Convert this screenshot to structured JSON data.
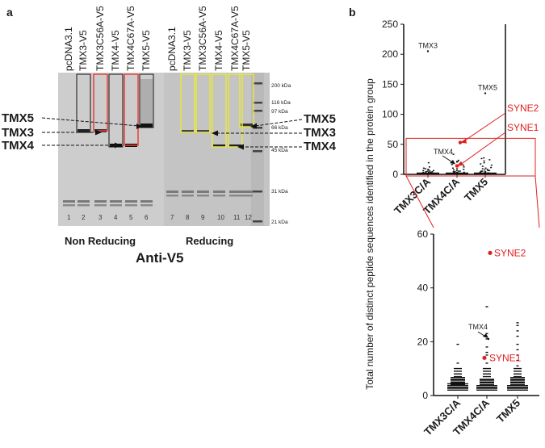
{
  "figure": {
    "panel_a": {
      "letter": "a",
      "lanes": [
        {
          "label": "pcDNA3.1",
          "num": "1"
        },
        {
          "label": "TMX3-V5",
          "num": "2"
        },
        {
          "label": "TMX3C56A-V5",
          "num": "3"
        },
        {
          "label": "TMX4-V5",
          "num": "4"
        },
        {
          "label": "TMX4C67A-V5",
          "num": "5"
        },
        {
          "label": "TMX5-V5",
          "num": "6"
        },
        {
          "label": "pcDNA3.1",
          "num": "7"
        },
        {
          "label": "TMX3-V5",
          "num": "8"
        },
        {
          "label": "TMX3C56A-V5",
          "num": "9"
        },
        {
          "label": "TMX4-V5",
          "num": "10"
        },
        {
          "label": "TMX4C67A-V5",
          "num": "11"
        },
        {
          "label": "TMX5-V5",
          "num": "12"
        }
      ],
      "left_bands": [
        "TMX5",
        "TMX3",
        "TMX4"
      ],
      "right_bands": [
        "TMX5",
        "TMX3",
        "TMX4"
      ],
      "markers": [
        "200 kDa",
        "116 kDa",
        "97 kDa",
        "66 kDa",
        "45 kDa",
        "31 kDa",
        "21 kDa"
      ],
      "condition_left": "Non Reducing",
      "condition_right": "Reducing",
      "antibody": "Anti-V5",
      "box_colors": {
        "non_reducing": "#e8403a",
        "reducing": "#e6e640"
      }
    },
    "panel_b": {
      "letter": "b",
      "ylabel": "Total number of distinct peptide sequences identified in the protein group",
      "highlight_color": "#e02020",
      "top_annotations": [
        "TMX3",
        "TMX5",
        "TMX4"
      ],
      "highlights": [
        "SYNE2",
        "SYNE1"
      ],
      "bottom_annotations": [
        "TMX4"
      ]
    }
  },
  "chart_data": [
    {
      "type": "scatter",
      "title": "",
      "categories": [
        "TMX3C/A",
        "TMX4C/A",
        "TMX5"
      ],
      "ylabel": "Total number of distinct peptide sequences identified in the protein group",
      "ylim": [
        0,
        250
      ],
      "yticks": [
        0,
        50,
        100,
        150,
        200,
        250
      ],
      "labeled_points": [
        {
          "category": "TMX3C/A",
          "label": "TMX3",
          "value": 205
        },
        {
          "category": "TMX5",
          "label": "TMX5",
          "value": 135
        },
        {
          "category": "TMX4C/A",
          "label": "SYNE2",
          "value": 53,
          "highlight": true
        },
        {
          "category": "TMX4C/A",
          "label": "SYNE1",
          "value": 14,
          "highlight": true
        },
        {
          "category": "TMX4C/A",
          "label": "TMX4",
          "value": 21
        }
      ],
      "zoom_range": [
        0,
        60
      ]
    },
    {
      "type": "scatter",
      "title": "",
      "categories": [
        "TMX3C/A",
        "TMX4C/A",
        "TMX5"
      ],
      "ylim": [
        0,
        60
      ],
      "yticks": [
        0,
        20,
        40,
        60
      ],
      "series": [
        {
          "name": "TMX3C/A",
          "values": [
            19,
            12,
            10,
            9,
            8,
            7,
            6,
            6,
            5,
            5,
            4,
            4,
            3,
            3,
            3,
            2,
            2
          ]
        },
        {
          "name": "TMX4C/A",
          "values": [
            33,
            23,
            21,
            18,
            16,
            15,
            12,
            10,
            9,
            8,
            7,
            6,
            5,
            5,
            4,
            4,
            3,
            3,
            2,
            2
          ]
        },
        {
          "name": "TMX5",
          "values": [
            27,
            26,
            24,
            22,
            19,
            17,
            15,
            13,
            11,
            10,
            9,
            8,
            7,
            6,
            6,
            5,
            5,
            4,
            4,
            3,
            3,
            2,
            2
          ]
        }
      ],
      "labeled_points": [
        {
          "category": "TMX4C/A",
          "label": "SYNE2",
          "value": 53,
          "highlight": true
        },
        {
          "category": "TMX4C/A",
          "label": "SYNE1",
          "value": 14,
          "highlight": true
        },
        {
          "category": "TMX4C/A",
          "label": "TMX4",
          "value": 21
        }
      ]
    }
  ]
}
